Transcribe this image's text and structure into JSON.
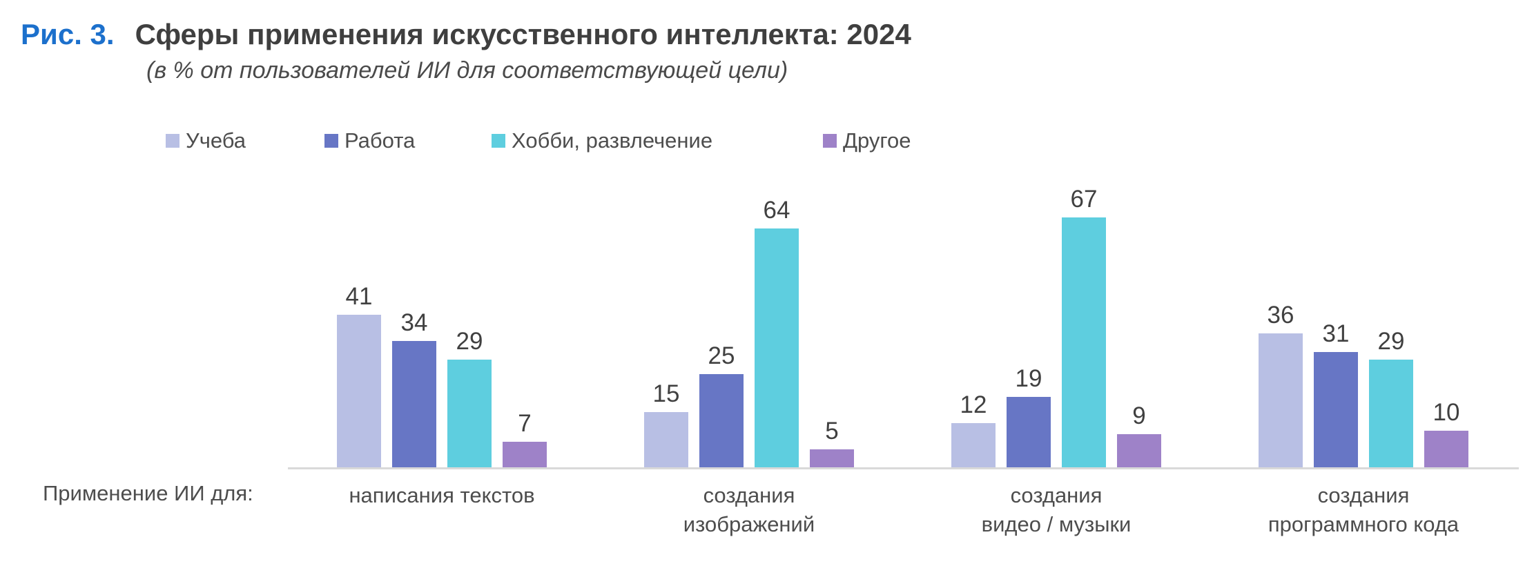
{
  "figure": {
    "fig_label": "Рис. 3.",
    "title": "Сферы применения искусственного интеллекта: 2024",
    "subtitle": "(в % от пользователей ИИ для соответствующей цели)"
  },
  "axis_caption": "Применение ИИ для:",
  "colors": {
    "fig_label_blue": "#1C70CC",
    "title_text": "#3F3F3F",
    "body_text": "#4D4D4D",
    "value_label_text": "#404040",
    "axis_line": "#D9D9D9",
    "series_ucheba": "#B8BFE4",
    "series_rabota": "#6776C5",
    "series_hobbi": "#5ECEDF",
    "series_drugoe": "#9E82C8"
  },
  "chart_data": {
    "type": "bar",
    "title": "Сферы применения искусственного интеллекта: 2024",
    "subtitle": "(в % от пользователей ИИ для соответствующей цели)",
    "unit": "%",
    "categories": [
      "написания текстов",
      "создания изображений",
      "создания видео / музыки",
      "создания программного кода"
    ],
    "category_label_lines": [
      [
        "написания текстов"
      ],
      [
        "создания",
        "изображений"
      ],
      [
        "создания",
        "видео / музыки"
      ],
      [
        "создания",
        "программного кода"
      ]
    ],
    "series": [
      {
        "name": "Учеба",
        "color": "#B8BFE4",
        "values": [
          41,
          15,
          12,
          36
        ]
      },
      {
        "name": "Работа",
        "color": "#6776C5",
        "values": [
          34,
          25,
          19,
          31
        ]
      },
      {
        "name": "Хобби, развлечение",
        "color": "#5ECEDF",
        "values": [
          29,
          64,
          67,
          29
        ]
      },
      {
        "name": "Другое",
        "color": "#9E82C8",
        "values": [
          7,
          5,
          9,
          10
        ]
      }
    ],
    "ylim": [
      0,
      70
    ],
    "grid": false,
    "y_axis_visible": false,
    "legend_position": "top",
    "data_labels": true
  }
}
